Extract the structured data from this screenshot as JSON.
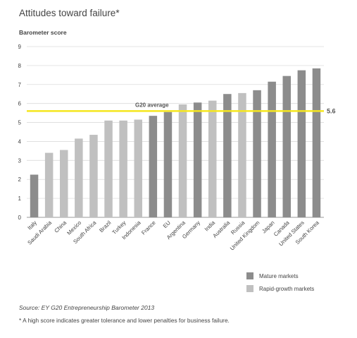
{
  "chart_data": {
    "type": "bar",
    "title": "Attitudes toward failure*",
    "ylabel": "Barometer score",
    "ylim": [
      0,
      9
    ],
    "yticks": [
      0,
      1,
      2,
      3,
      4,
      5,
      6,
      7,
      8,
      9
    ],
    "categories": [
      "Italy",
      "Saudi Arabia",
      "China",
      "Mexico",
      "South Africa",
      "Brazil",
      "Turkey",
      "Indonesia",
      "France",
      "EU",
      "Argentina",
      "Germany",
      "India",
      "Australia",
      "Russia",
      "United Kingdom",
      "Japan",
      "Canada",
      "United States",
      "South Korea"
    ],
    "values": [
      2.25,
      3.4,
      3.55,
      4.15,
      4.35,
      5.1,
      5.1,
      5.15,
      5.35,
      5.55,
      5.95,
      6.05,
      6.15,
      6.5,
      6.55,
      6.7,
      7.15,
      7.45,
      7.75,
      7.85
    ],
    "groups": [
      "mature",
      "rapid",
      "rapid",
      "rapid",
      "rapid",
      "rapid",
      "rapid",
      "rapid",
      "mature",
      "mature",
      "rapid",
      "mature",
      "rapid",
      "mature",
      "rapid",
      "mature",
      "mature",
      "mature",
      "mature",
      "mature"
    ],
    "reference_line": {
      "label": "G20 average",
      "value": 5.6,
      "value_label": "5.6",
      "color": "#f5e61e"
    },
    "legend": [
      {
        "key": "mature",
        "label": "Mature markets",
        "color": "#8c8c8c"
      },
      {
        "key": "rapid",
        "label": "Rapid-growth markets",
        "color": "#c0c0c0"
      }
    ],
    "grid": true,
    "legend_position": "bottom-right"
  },
  "source": "Source: EY G20 Entrepreneurship Barometer 2013",
  "footnote": "*   A high score indicates greater tolerance and lower penalties for business failure."
}
